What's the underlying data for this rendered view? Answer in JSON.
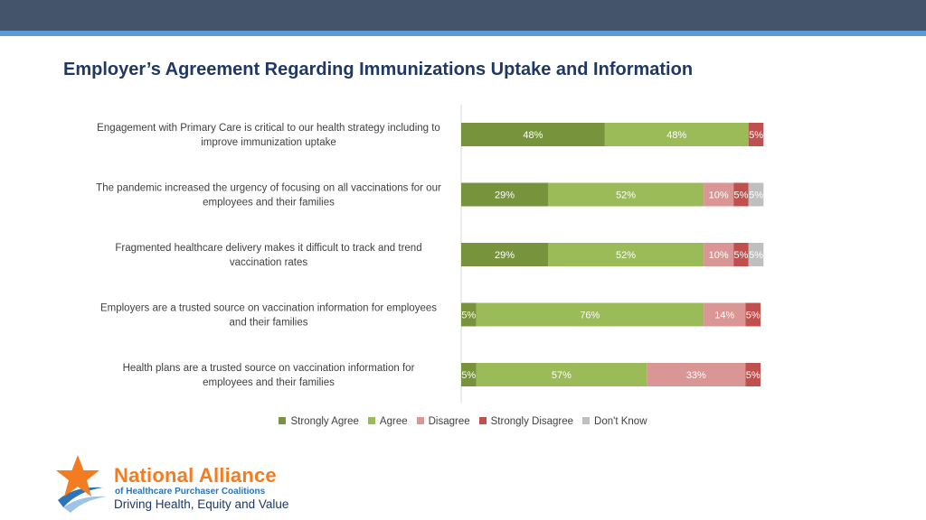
{
  "slide": {
    "title": "Employer’s Agreement Regarding Immunizations Uptake and Information"
  },
  "chart_data": {
    "type": "bar",
    "orientation": "horizontal",
    "stacked": true,
    "title": "",
    "xlabel": "",
    "ylabel": "",
    "categories": [
      [
        "Engagement with Primary Care is critical to our health strategy including to",
        "improve immunization uptake"
      ],
      [
        "The pandemic increased the urgency of focusing on all vaccinations for our",
        "employees and their families"
      ],
      [
        "Fragmented healthcare delivery makes it difficult to track and trend",
        "vaccination rates"
      ],
      [
        "Employers are a trusted source on vaccination information for employees",
        "and their families"
      ],
      [
        "Health plans are a trusted source on vaccination information for",
        "employees and their families"
      ]
    ],
    "series": [
      {
        "name": "Strongly Agree",
        "color": "#77933c",
        "values": [
          48,
          29,
          29,
          5,
          5
        ]
      },
      {
        "name": "Agree",
        "color": "#9bbb59",
        "values": [
          48,
          52,
          52,
          76,
          57
        ]
      },
      {
        "name": "Disagree",
        "color": "#da9694",
        "values": [
          0,
          10,
          10,
          14,
          33
        ]
      },
      {
        "name": "Strongly Disagree",
        "color": "#c0504d",
        "values": [
          5,
          5,
          5,
          5,
          5
        ]
      },
      {
        "name": "Don't Know",
        "color": "#bfbfbf",
        "values": [
          0,
          5,
          5,
          0,
          0
        ]
      }
    ],
    "value_format": "{v}%",
    "legend_position": "bottom",
    "grid": false
  },
  "logo": {
    "line1": "National Alliance",
    "line2": "of Healthcare Purchaser Coalitions",
    "line3": "Driving Health, Equity and Value"
  }
}
